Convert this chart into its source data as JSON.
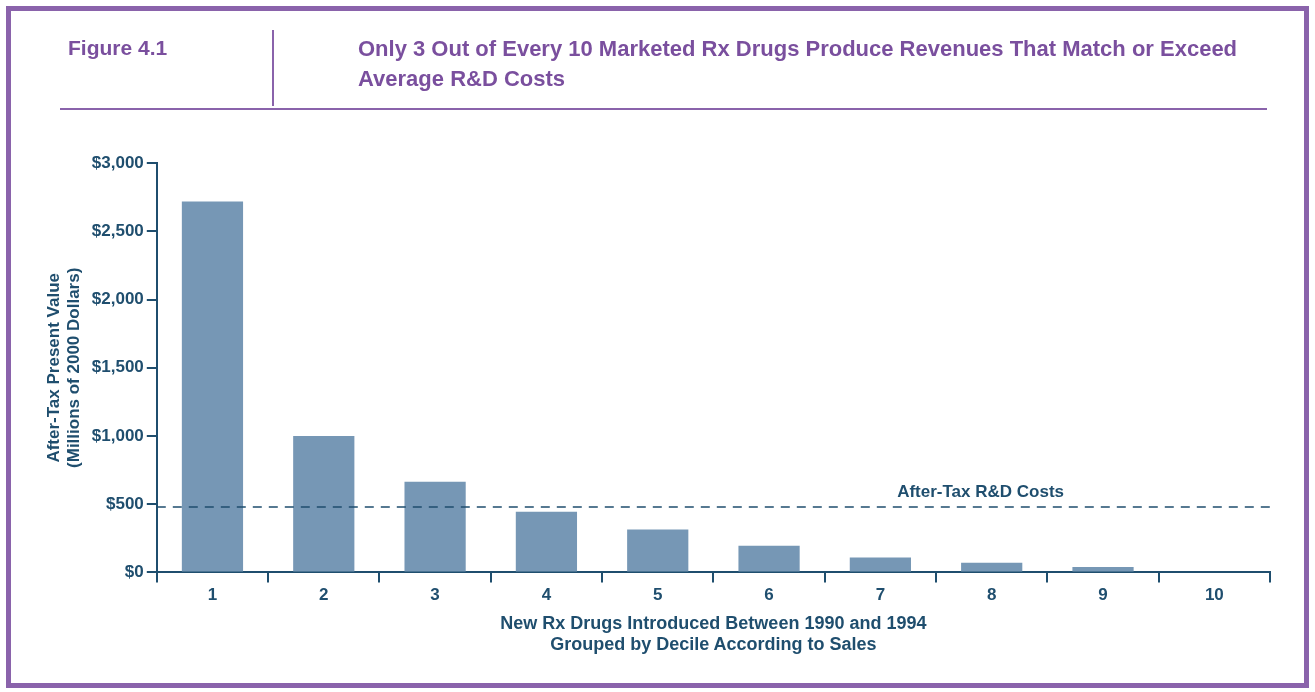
{
  "chart_data": {
    "type": "bar",
    "title": "Only 3 Out of Every 10 Marketed Rx Drugs Produce Revenues That Match or Exceed Average R&D Costs",
    "annotations": [
      "Figure 4.1"
    ],
    "xlabel": "New Rx Drugs Introduced Between 1990 and 1994\nGrouped by Decile According to Sales",
    "ylabel": "After-Tax Present Value\n(Millions of 2000 Dollars)",
    "categories": [
      "1",
      "2",
      "3",
      "4",
      "5",
      "6",
      "7",
      "8",
      "9",
      "10"
    ],
    "values": [
      2720,
      1000,
      665,
      445,
      315,
      195,
      110,
      70,
      40,
      0
    ],
    "color": "#7697b5",
    "ylim": [
      0,
      3000
    ],
    "yticks": [
      {
        "value": 0,
        "label": "$0"
      },
      {
        "value": 500,
        "label": "$500"
      },
      {
        "value": 1000,
        "label": "$1,000"
      },
      {
        "value": 1500,
        "label": "$1,500"
      },
      {
        "value": 2000,
        "label": "$2,000"
      },
      {
        "value": 2500,
        "label": "$2,500"
      },
      {
        "value": 3000,
        "label": "$3,000"
      }
    ],
    "ref_lines": [
      {
        "axis": "y",
        "value": 480,
        "label": "After-Tax R&D Costs",
        "color": "#1f4e6e",
        "line_style": "dashed"
      }
    ],
    "grid": false,
    "legend": false
  }
}
